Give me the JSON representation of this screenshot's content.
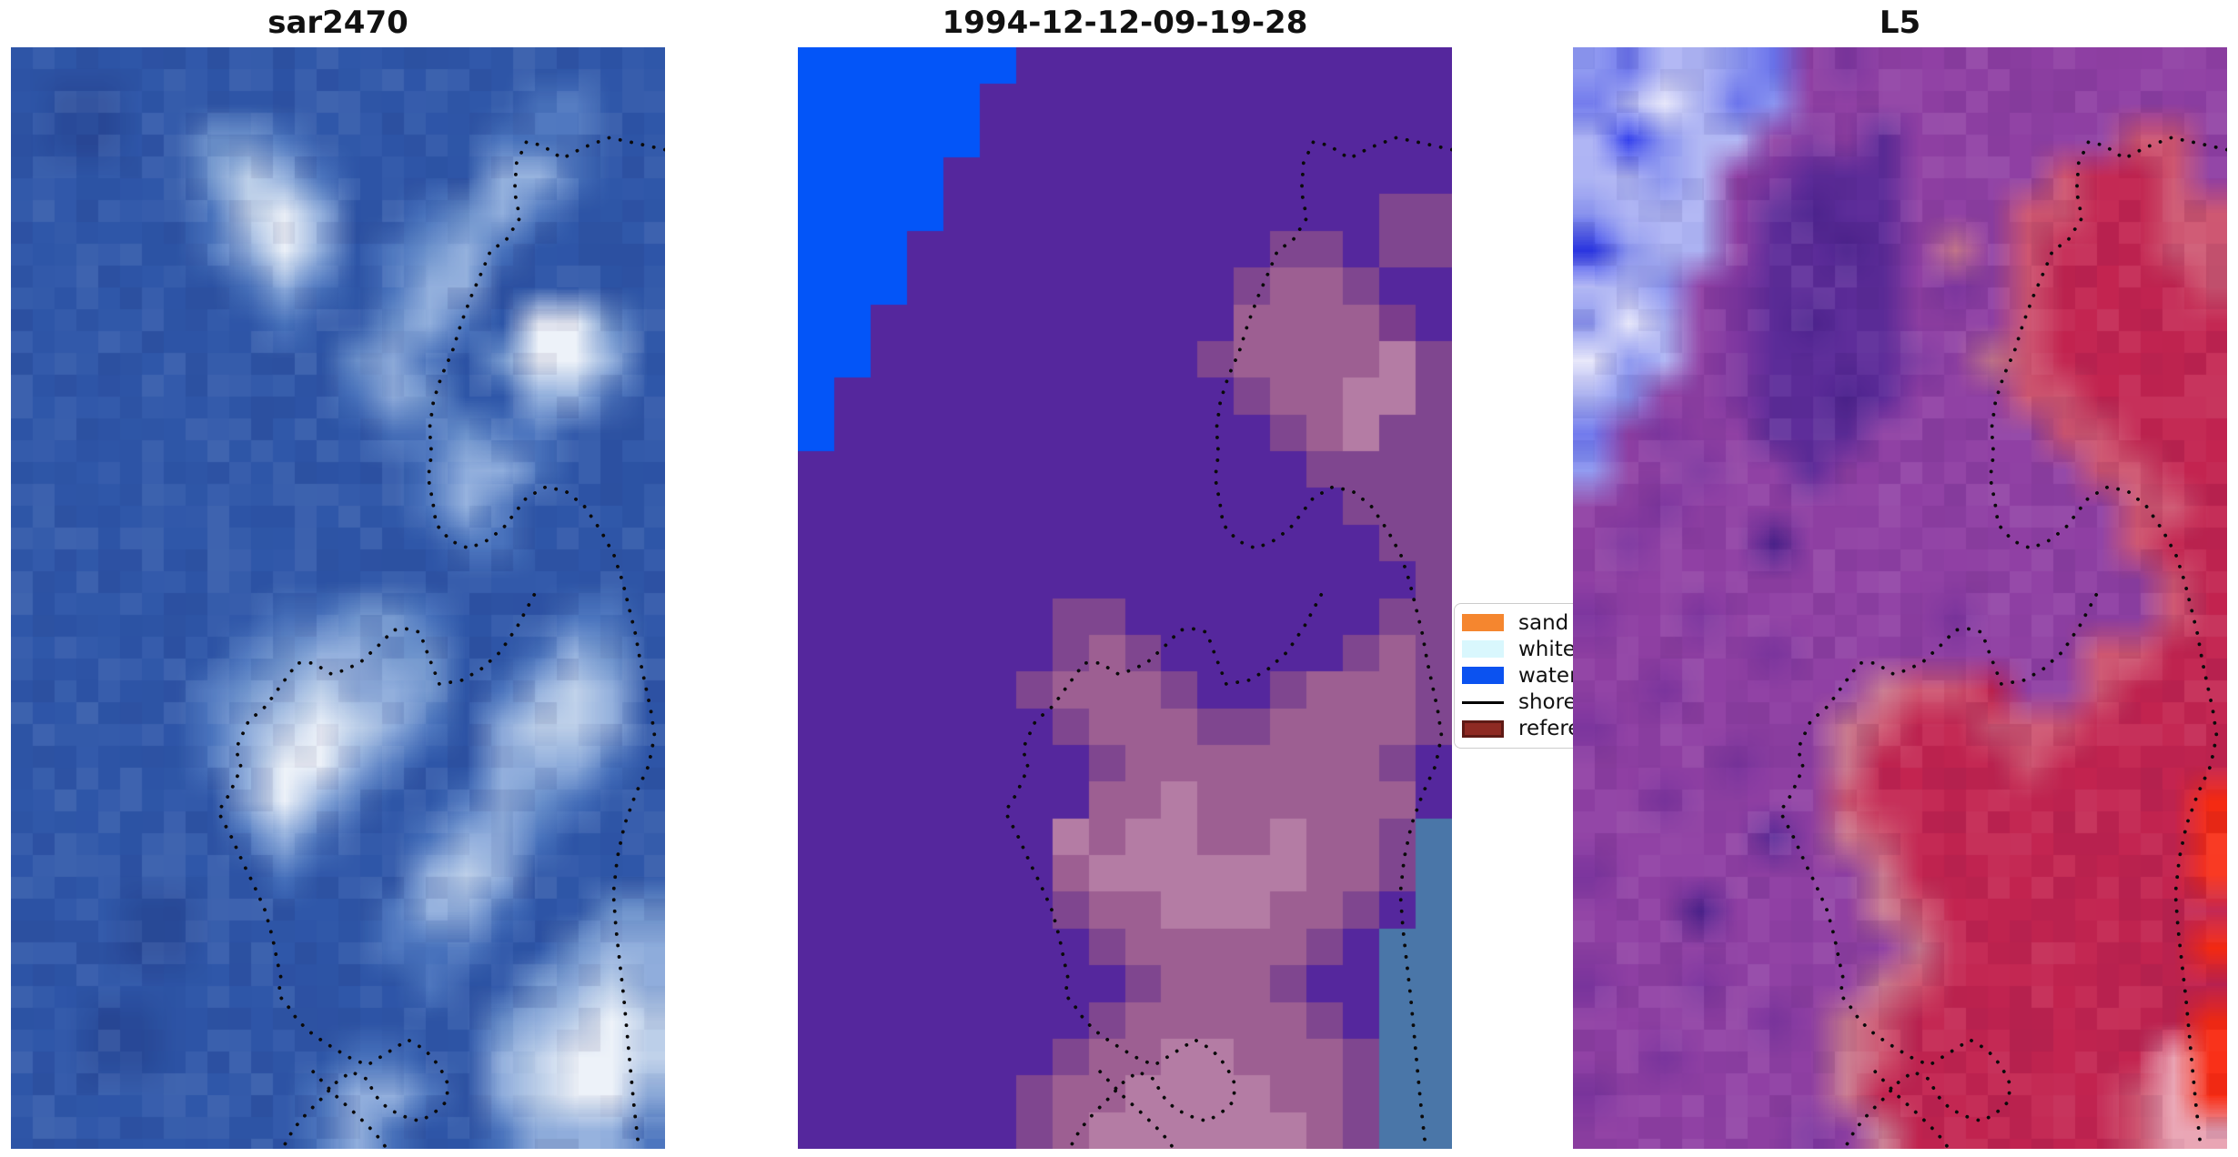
{
  "figure": {
    "background": "#ffffff"
  },
  "panels": [
    {
      "title": "sar2470",
      "render": "smooth",
      "noise": true,
      "seed": 7,
      "palette": {
        "b": "#2F57A9",
        "d": "#2A4C9B",
        "m": "#4A74BE",
        "l": "#6C92CC",
        "L": "#8FADDC",
        "w": "#BCCFE9",
        "W": "#EDF2F9"
      },
      "rows": [
        "bbbbbbbbbbbbbbbbbb",
        "bddbbbbbbbbbbbmmbb",
        "bddbbllmbbbbbmmmbb",
        "bbbbblwLmbbbbLLmbb",
        "bbbbbmwWLbbmlLmbbb",
        "bbbbbmLWLbmlLmbbbb",
        "bbbbbbmLmbmLLbbbbb",
        "bbbbbbbmbblLmbWWlb",
        "bbbbbbbbblLmblWWLb",
        "bbbbbbbbbmLlbbLLmb",
        "bbbbbbbbbbmmlmmbbb",
        "bbbbbbbbbbbmLLmbbb",
        "bbbbbbbbbbbmLmbbbb",
        "bbbbbbbbbbbbmmbbbb",
        "bbbbbbbbbbbbbbbbbb",
        "bbbbbbbmmllmbbbmmb",
        "bbbbbbmlLLllbbmLlb",
        "bbbbbmlLwLLlbmLwLb",
        "bbbbbmLwWwLmbLwwLb",
        "bbbbbmLWWLmbbLLLmb",
        "bbbbbbLWLmbbmLlmbb",
        "bbbbbbmLmbbmLLmbbb",
        "bbbbbbbmbbbLwLbbbb",
        "bbbddbbbbbmLLmbbll",
        "bbbddbbbbbmmmbblLL",
        "bbbbbbbbbbbmbblLwL",
        "bbddbbbbbbbbblLwWw",
        "bbddbbbbbmmbbLwWWw",
        "bbbbbbbbmLLmbLwWWL",
        "bbbbbbbbmLmbbmLLLm"
      ]
    },
    {
      "title": "1994-12-12-09-19-28",
      "render": "blocky",
      "noise": false,
      "seed": 3,
      "palette": {
        "B": "#0355F8",
        "P": "#55279D",
        "q": "#7F468F",
        "R": "#9D5F92",
        "r": "#B47CA4",
        "p": "#7B3D8C",
        "T": "#4A76A8"
      },
      "rows": [
        "BBBBBBPPPPPPPPPPPP",
        "BBBBBPPPPPPPPPPPPP",
        "BBBBBPPPPPPPPPPPPP",
        "BBBBPPPPPPPPPPPPPP",
        "BBBBPPPPPPPPPPPPqq",
        "BBBPPPPPPPPPPqqPqq",
        "BBBPPPPPPPPPqRRqPP",
        "BBPPPPPPPPPPRRRRpP",
        "BBPPPPPPPPPqRRRRrq",
        "BPPPPPPPPPPPqRRrrq",
        "BPPPPPPPPPPPPqRrqq",
        "PPPPPPPPPPPPPPqqqq",
        "PPPPPPPPPPPPPPPqqq",
        "PPPPPPPPPPPPPPPPqq",
        "PPPPPPPPPPPPPPPPPq",
        "PPPPPPPqqPPPPPPPqq",
        "PPPPPPPqRqPPPPPqRq",
        "PPPPPPqRRRqPPqRRRq",
        "PPPPPPPqRRRqqRRRRq",
        "PPPPPPPPqRRRRRRRqP",
        "PPPPPPPPRRrRRRRRRP",
        "PPPPPPPrRrrRRrRRqT",
        "PPPPPPPRrrrrrrRRqT",
        "PPPPPPPqRRrrrRRqPT",
        "PPPPPPPPqRRRRRqPTT",
        "PPPPPPPPPqRRRqPPTT",
        "PPPPPPPPqRRRRRqPTT",
        "PPPPPPPqRRrrRRRqTT",
        "PPPPPPqRRrrrrRRqTT",
        "PPPPPPqRrrrrrrRqTT"
      ]
    },
    {
      "title": "L5",
      "render": "smooth",
      "noise": true,
      "seed": 11,
      "palette": {
        "B": "#6B74EC",
        "U": "#2E3BEE",
        "L": "#AEB4F4",
        "w": "#8C96F0",
        "W": "#E8E8FA",
        "M": "#9040A4",
        "m": "#7E37A0",
        "D": "#5E2D9A",
        "V": "#4F2590",
        "R": "#C32450",
        "S": "#CE5570",
        "r": "#C9798E",
        "k": "#E9A2B2",
        "O": "#F92B12"
      },
      "rows": [
        "wBLLwBMmMMMMMMMMMM",
        "BLWLBwMMMMMMMMMMMM",
        "LUwLLMmMDMMMMMMSSM",
        "LLwLMmDDDMMMMSRRSM",
        "wLLLMDVDDMMMSSRRSS",
        "UwLLMDDVDMrMSRRRSS",
        "LLwMmDDDDMmMSRRRRS",
        "wWLMmDVDDMMMSRRRRR",
        "WwLMmDDDDmMrSRRRRR",
        "LwMMmDDVDMMMSSRRRR",
        "BMmMMDDDMMMMMSSRRR",
        "wMMmMMDMMMMMMMSSRR",
        "MMmMMMMMMMMMMMMSSR",
        "MmMMMVMMMMMMMMMSRR",
        "MMMMMMMMMMMMMMMMSR",
        "mMMmMMMMMMmMMMMMSR",
        "MMMMMmMMMMMMMMSSRR",
        "MMmMMMMMrSSRMMSRRR",
        "mMMMMMMrSRRSSSRRRR",
        "MMMMmMMrRRRRSRRRRR",
        "MMmMMMMSRRRRRRRRRO",
        "MMMMMDMrSRRRRRRRRO",
        "mMMMMMMMrRRRRRRRRO",
        "MMMVMMMMrSRRRRRRRR",
        "MMMMMMMMMrRRRRRRRO",
        "mMMmMMMMrSRRRRRRRR",
        "MMMMMmMrSRRRRRRRRO",
        "MMmMMMMrSRRRRRRRkO",
        "mMMMMMMrRRRRRRRSkO",
        "MMMMMMmMrRRRRRRSkk"
      ]
    }
  ],
  "legend": {
    "items": [
      {
        "label": "sand",
        "color": "#F5862F",
        "type": "patch"
      },
      {
        "label": "whitewater",
        "color": "#D9F7FD",
        "type": "patch"
      },
      {
        "label": "water",
        "color": "#0B52F0",
        "type": "patch"
      },
      {
        "label": "shoreline",
        "color": "#000000",
        "type": "line"
      },
      {
        "label": "reference",
        "color": "#8E2A23",
        "type": "patch",
        "border": "#5E1A15"
      }
    ]
  },
  "shoreline": {
    "color": "#0a0a0a",
    "segments": [
      [
        [
          1.0,
          0.093
        ],
        [
          0.955,
          0.087
        ],
        [
          0.915,
          0.082
        ],
        [
          0.875,
          0.091
        ],
        [
          0.843,
          0.101
        ],
        [
          0.812,
          0.089
        ],
        [
          0.788,
          0.086
        ],
        [
          0.773,
          0.105
        ],
        [
          0.77,
          0.131
        ],
        [
          0.778,
          0.155
        ],
        [
          0.757,
          0.175
        ],
        [
          0.733,
          0.185
        ],
        [
          0.722,
          0.201
        ],
        [
          0.703,
          0.227
        ],
        [
          0.688,
          0.251
        ],
        [
          0.675,
          0.276
        ],
        [
          0.658,
          0.299
        ],
        [
          0.646,
          0.321
        ],
        [
          0.64,
          0.346
        ],
        [
          0.643,
          0.369
        ],
        [
          0.638,
          0.391
        ],
        [
          0.645,
          0.413
        ],
        [
          0.65,
          0.433
        ],
        [
          0.672,
          0.448
        ],
        [
          0.7,
          0.455
        ],
        [
          0.727,
          0.448
        ],
        [
          0.752,
          0.437
        ],
        [
          0.788,
          0.409
        ],
        [
          0.818,
          0.399
        ],
        [
          0.848,
          0.403
        ],
        [
          0.876,
          0.416
        ],
        [
          0.902,
          0.439
        ],
        [
          0.922,
          0.461
        ],
        [
          0.935,
          0.485
        ],
        [
          0.945,
          0.509
        ],
        [
          0.955,
          0.533
        ],
        [
          0.962,
          0.557
        ],
        [
          0.97,
          0.579
        ],
        [
          0.978,
          0.601
        ],
        [
          0.984,
          0.625
        ],
        [
          0.975,
          0.652
        ],
        [
          0.955,
          0.678
        ],
        [
          0.938,
          0.706
        ],
        [
          0.927,
          0.736
        ],
        [
          0.921,
          0.768
        ],
        [
          0.925,
          0.8
        ],
        [
          0.931,
          0.832
        ],
        [
          0.937,
          0.863
        ],
        [
          0.942,
          0.895
        ],
        [
          0.947,
          0.927
        ],
        [
          0.952,
          0.958
        ],
        [
          0.957,
          0.985
        ],
        [
          0.96,
          1.0
        ]
      ],
      [
        [
          0.8,
          0.497
        ],
        [
          0.775,
          0.525
        ],
        [
          0.748,
          0.549
        ],
        [
          0.718,
          0.565
        ],
        [
          0.688,
          0.575
        ],
        [
          0.655,
          0.578
        ],
        [
          0.638,
          0.552
        ],
        [
          0.625,
          0.531
        ],
        [
          0.605,
          0.528
        ],
        [
          0.585,
          0.529
        ],
        [
          0.562,
          0.543
        ],
        [
          0.535,
          0.558
        ],
        [
          0.512,
          0.565
        ],
        [
          0.49,
          0.569
        ],
        [
          0.462,
          0.559
        ],
        [
          0.438,
          0.559
        ],
        [
          0.413,
          0.579
        ],
        [
          0.39,
          0.598
        ],
        [
          0.363,
          0.612
        ],
        [
          0.344,
          0.637
        ],
        [
          0.352,
          0.654
        ],
        [
          0.334,
          0.678
        ],
        [
          0.317,
          0.694
        ],
        [
          0.338,
          0.718
        ],
        [
          0.356,
          0.742
        ],
        [
          0.366,
          0.754
        ],
        [
          0.377,
          0.768
        ],
        [
          0.388,
          0.783
        ],
        [
          0.396,
          0.799
        ],
        [
          0.402,
          0.814
        ],
        [
          0.407,
          0.829
        ],
        [
          0.413,
          0.845
        ],
        [
          0.409,
          0.86
        ],
        [
          0.424,
          0.871
        ],
        [
          0.438,
          0.883
        ],
        [
          0.455,
          0.893
        ],
        [
          0.476,
          0.902
        ],
        [
          0.497,
          0.91
        ],
        [
          0.52,
          0.918
        ],
        [
          0.545,
          0.924
        ],
        [
          0.575,
          0.913
        ],
        [
          0.607,
          0.901
        ],
        [
          0.633,
          0.91
        ],
        [
          0.655,
          0.925
        ],
        [
          0.668,
          0.941
        ],
        [
          0.666,
          0.957
        ],
        [
          0.646,
          0.968
        ],
        [
          0.625,
          0.975
        ],
        [
          0.603,
          0.971
        ],
        [
          0.577,
          0.964
        ],
        [
          0.556,
          0.951
        ],
        [
          0.545,
          0.937
        ],
        [
          0.52,
          0.93
        ],
        [
          0.497,
          0.94
        ],
        [
          0.474,
          0.955
        ],
        [
          0.452,
          0.968
        ],
        [
          0.432,
          0.982
        ],
        [
          0.415,
          1.0
        ]
      ],
      [
        [
          0.462,
          0.93
        ],
        [
          0.497,
          0.952
        ],
        [
          0.53,
          0.97
        ],
        [
          0.557,
          0.986
        ],
        [
          0.575,
          1.0
        ]
      ]
    ]
  },
  "chart_data": [
    {
      "type": "heatmap",
      "title": "sar2470",
      "note": "SAR image panel in blue tones with bright white patches and dotted shoreline contour overlay"
    },
    {
      "type": "heatmap",
      "title": "1994-12-12-09-19-28",
      "note": "Classified map: blue water wedge top-left, purple background, rose patches, steel-blue strip bottom-right, dotted shoreline contour"
    },
    {
      "type": "heatmap",
      "title": "L5",
      "note": "Landsat-5 false-color panel: periwinkle-blue water top-left, magenta land, crimson/red region on right with bright red edge strips, dotted shoreline contour"
    }
  ]
}
